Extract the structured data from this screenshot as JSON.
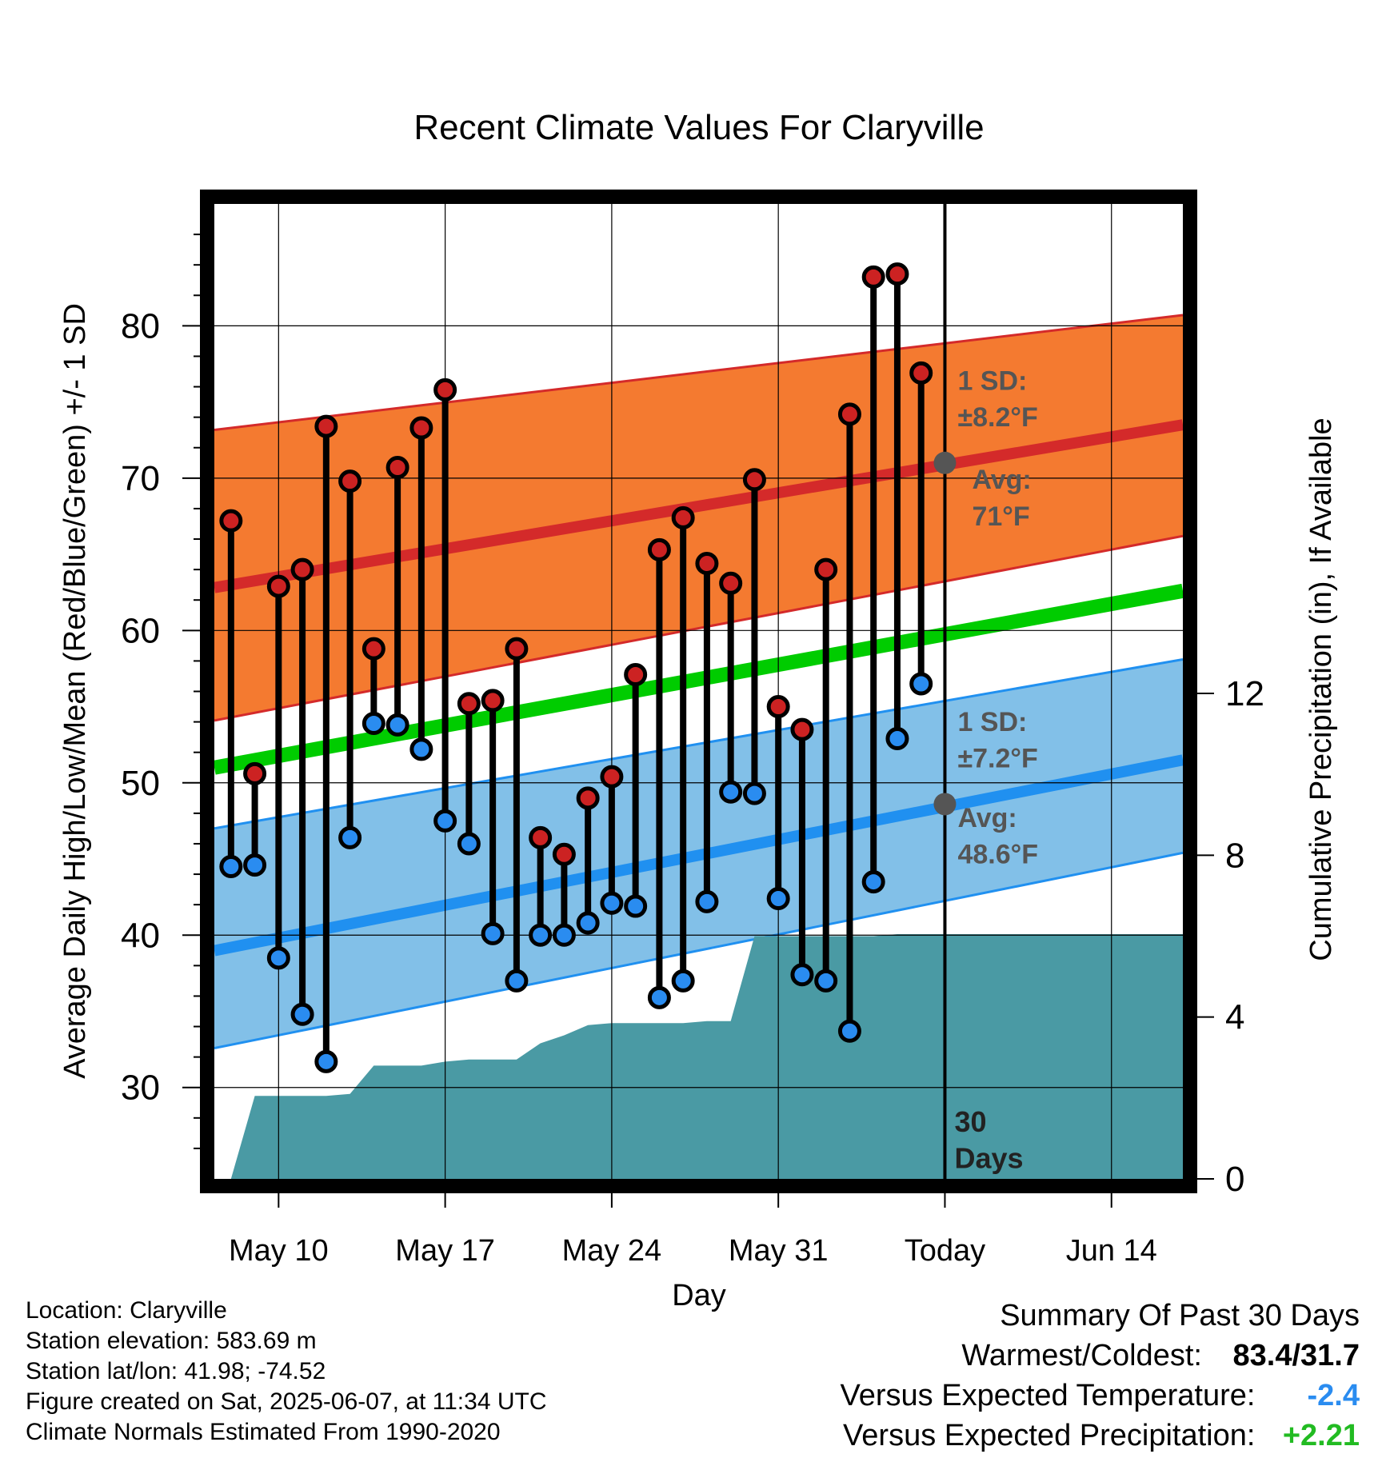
{
  "chart_data": {
    "type": "line",
    "title": "Recent Climate Values For Claryville",
    "xlabel": "Day",
    "ylabel_left": "Average Daily High/Low/Mean (Red/Blue/Green) +/- 1 SD",
    "ylabel_right": "Cumulative Precipitation (in), If Available",
    "x_tick_labels": [
      {
        "label": "May 10",
        "day": 10
      },
      {
        "label": "May 17",
        "day": 17
      },
      {
        "label": "May 24",
        "day": 24
      },
      {
        "label": "May 31",
        "day": 31
      },
      {
        "label": "Today",
        "day": 38
      },
      {
        "label": "Jun 14",
        "day": 45
      }
    ],
    "xlim_days_from_may1": [
      7.3,
      48.0
    ],
    "ylim_left": [
      24,
      88
    ],
    "y_ticks_left": [
      30,
      40,
      50,
      60,
      70,
      80
    ],
    "ylim_right": [
      0,
      24.1
    ],
    "y_ticks_right": [
      0,
      4,
      8,
      12
    ],
    "normals": {
      "high_mean": {
        "start": 63.0,
        "end": 73.5,
        "color": "#d42a2a"
      },
      "high_upper": {
        "start": 73.3,
        "end": 80.7
      },
      "high_lower": {
        "start": 54.3,
        "end": 66.2
      },
      "high_band_color": "#f47a30",
      "low_mean": {
        "start": 39.2,
        "end": 51.5,
        "color": "#2090f0"
      },
      "low_upper": {
        "start": 47.2,
        "end": 58.1
      },
      "low_lower": {
        "start": 32.8,
        "end": 45.4
      },
      "low_band_color": "#82c0e8",
      "mean": {
        "start": 51.2,
        "end": 62.6,
        "color": "#00cc00"
      }
    },
    "series": [
      {
        "name": "High",
        "color": "#cc2222",
        "values": [
          67.2,
          50.6,
          62.9,
          64.0,
          73.4,
          69.8,
          58.8,
          70.7,
          73.3,
          75.8,
          55.2,
          55.4,
          58.8,
          46.4,
          45.3,
          49.0,
          50.4,
          57.1,
          65.3,
          67.4,
          64.4,
          63.1,
          69.9,
          55.0,
          53.5,
          64.0,
          74.2,
          83.2,
          83.4,
          76.9
        ]
      },
      {
        "name": "Low",
        "color": "#2a8cf0",
        "values": [
          44.5,
          44.6,
          38.5,
          34.8,
          31.7,
          46.4,
          53.9,
          53.8,
          52.2,
          47.5,
          46.0,
          40.1,
          37.0,
          40.0,
          40.0,
          40.8,
          42.1,
          41.9,
          35.9,
          37.0,
          42.2,
          49.4,
          49.3,
          42.4,
          37.4,
          37.0,
          33.7,
          43.5,
          52.9,
          56.5
        ]
      },
      {
        "name": "Cumulative Precipitation",
        "color": "#4a9aa4",
        "values": [
          0.0,
          2.05,
          2.05,
          2.05,
          2.05,
          2.1,
          2.8,
          2.8,
          2.8,
          2.9,
          2.95,
          2.95,
          2.95,
          3.35,
          3.55,
          3.8,
          3.85,
          3.85,
          3.85,
          3.85,
          3.9,
          3.9,
          6.0,
          6.0,
          6.0,
          6.0,
          6.0,
          6.0,
          6.05,
          6.05
        ]
      }
    ],
    "annotations": {
      "high_sd_label": "1 SD:",
      "high_sd_value": "±8.2°F",
      "high_avg_label": "Avg:",
      "high_avg_value": "71°F",
      "high_avg_point": 71.0,
      "low_sd_label": "1 SD:",
      "low_sd_value": "±7.2°F",
      "low_avg_label": "Avg:",
      "low_avg_value": "48.6°F",
      "low_avg_point": 48.6,
      "window_label_line1": "30",
      "window_label_line2": "Days",
      "annotation_color": "#555555"
    },
    "grid": true
  },
  "footer_left": {
    "location": "Location: Claryville",
    "elevation": "Station elevation: 583.69 m",
    "latlon": "Station lat/lon: 41.98; -74.52",
    "created": "Figure created on Sat, 2025-06-07, at 11:34 UTC",
    "normals": "Climate Normals Estimated From 1990-2020"
  },
  "footer_right": {
    "title": "Summary Of Past 30 Days",
    "warm_cold_label": "Warmest/Coldest:",
    "warm_cold_value": "83.4/31.7",
    "temp_label": "Versus Expected Temperature:",
    "temp_value": "-2.4",
    "temp_color": "#2a8cf0",
    "precip_label": "Versus Expected Precipitation:",
    "precip_value": "+2.21",
    "precip_color": "#22bb22"
  }
}
